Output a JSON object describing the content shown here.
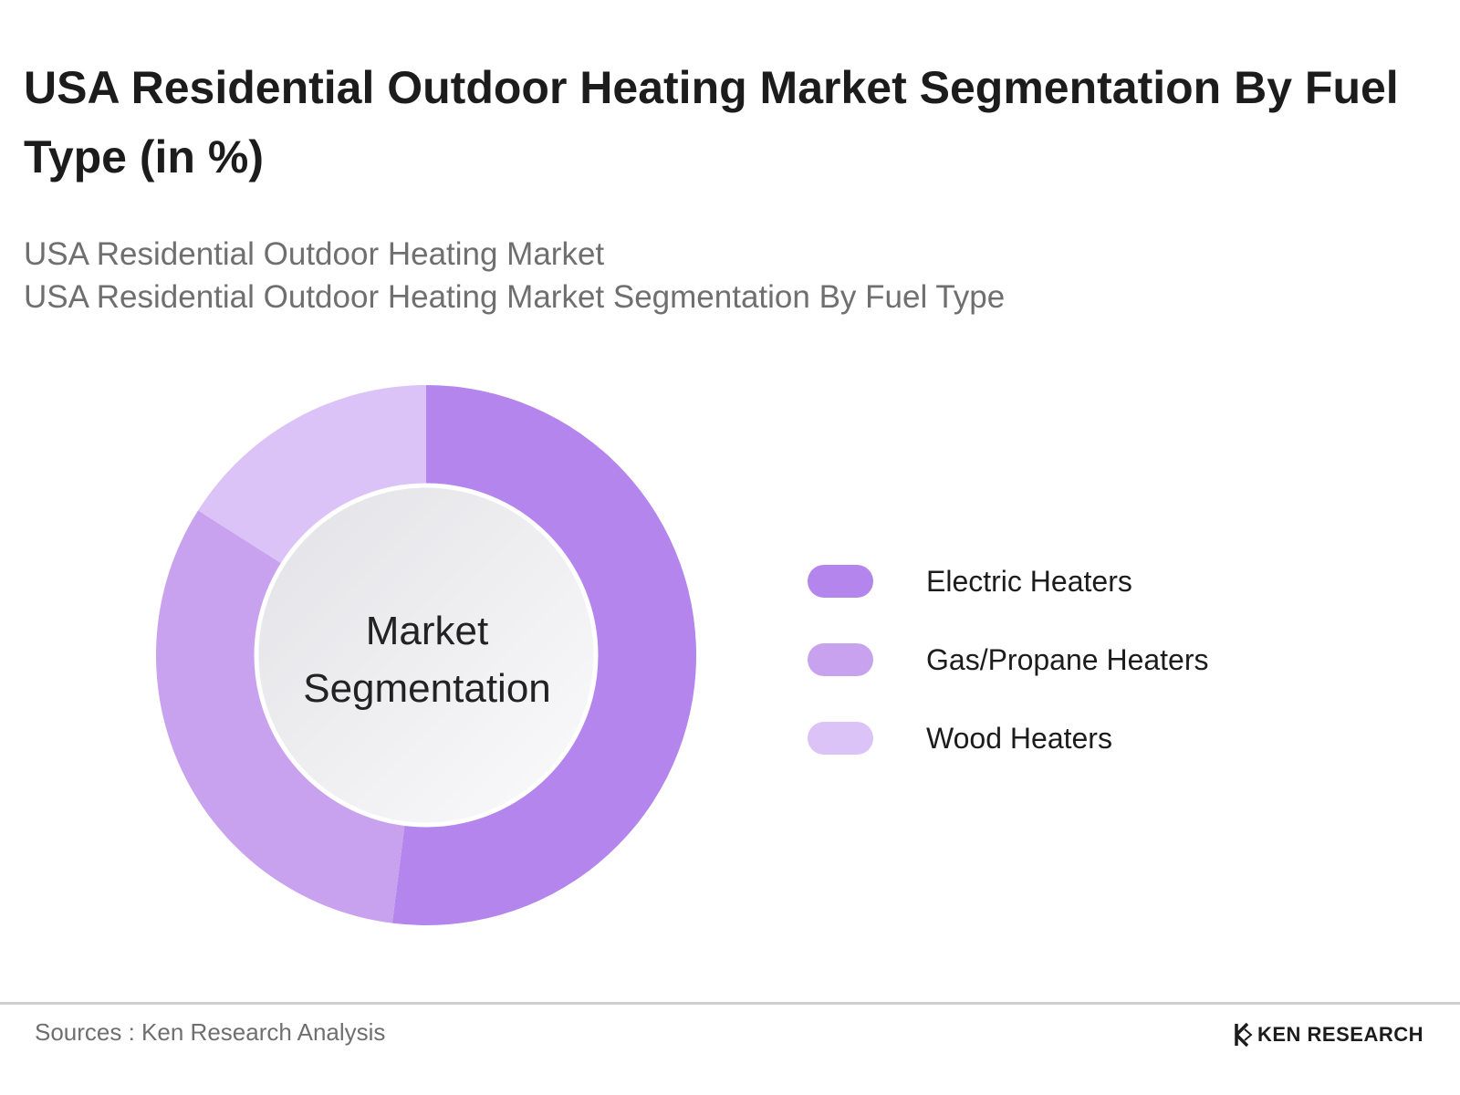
{
  "header": {
    "title": "USA Residential Outdoor Heating Market Segmentation By Fuel Type (in %)",
    "subtitle_line1": "USA Residential Outdoor Heating Market",
    "subtitle_line2": "USA Residential Outdoor Heating Market Segmentation By Fuel Type"
  },
  "chart_data": {
    "type": "pie",
    "variant": "donut",
    "center_label": "Market Segmentation",
    "categories": [
      "Electric Heaters",
      "Gas/Propane Heaters",
      "Wood Heaters"
    ],
    "values": [
      52,
      32,
      16
    ],
    "colors": [
      "#b385ed",
      "#c8a2ee",
      "#dcc3f7"
    ],
    "legend_placement": "right"
  },
  "footer": {
    "source": "Sources : Ken Research Analysis",
    "brand": "KEN RESEARCH"
  }
}
